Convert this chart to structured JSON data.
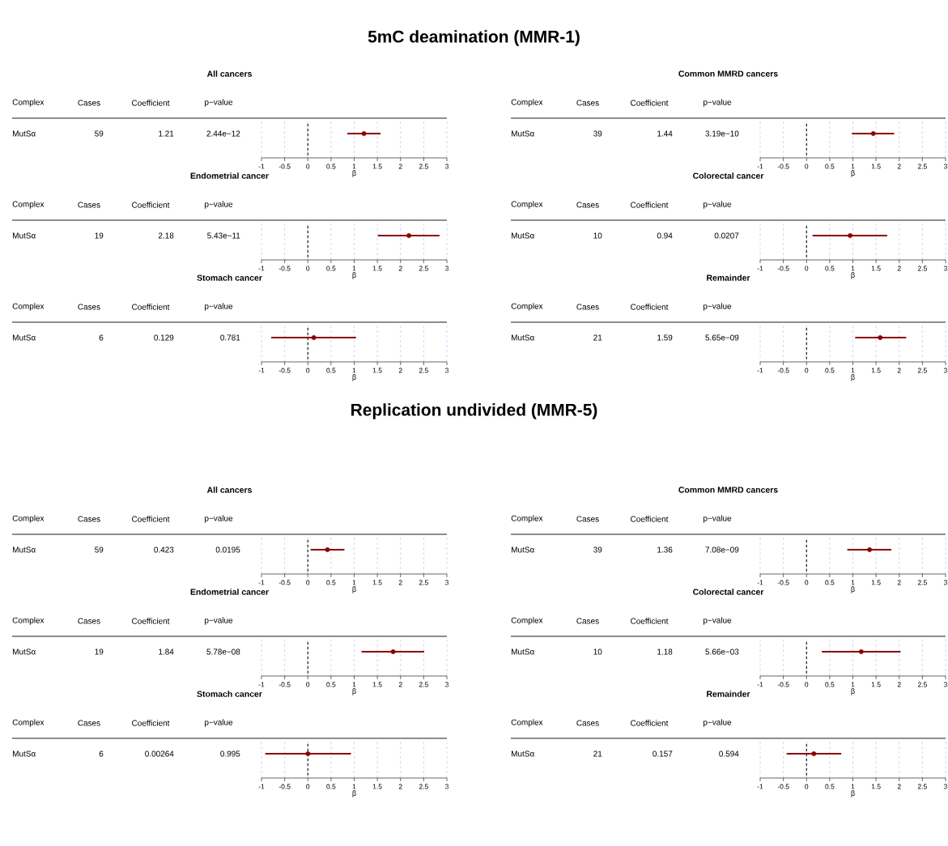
{
  "chart_data": [
    {
      "type": "scatter",
      "orientation": "horizontal",
      "subtitle": "5mC deamination (MMR-1)",
      "title": "All cancers",
      "xlabel": "β",
      "categories": [
        null
      ],
      "values": [
        1.21
      ],
      "errors": [
        [
          0.85,
          1.57
        ]
      ],
      "color": "#8b0000",
      "marker": "circle",
      "grid": "x",
      "xlim": [
        -1,
        3
      ],
      "xticks": [
        -1,
        -0.5,
        0,
        0.5,
        1,
        1.5,
        2,
        2.5,
        3
      ],
      "ref_lines": [
        {
          "axis": "x",
          "value": 0,
          "color": "#000000",
          "line_style": "dashed"
        }
      ],
      "annotations": [
        "Complex",
        "Cases",
        "Coefficient",
        "p−value",
        "MutSα",
        "59",
        "1.21",
        "2.44e−12"
      ]
    },
    {
      "type": "scatter",
      "orientation": "horizontal",
      "title": "Common MMRD cancers",
      "xlabel": "β",
      "categories": [
        null
      ],
      "values": [
        1.44
      ],
      "errors": [
        [
          0.98,
          1.89
        ]
      ],
      "color": "#8b0000",
      "marker": "circle",
      "grid": "x",
      "xlim": [
        -1,
        3
      ],
      "xticks": [
        -1,
        -0.5,
        0,
        0.5,
        1,
        1.5,
        2,
        2.5,
        3
      ],
      "ref_lines": [
        {
          "axis": "x",
          "value": 0,
          "color": "#000000",
          "line_style": "dashed"
        }
      ],
      "annotations": [
        "Complex",
        "Cases",
        "Coefficient",
        "p−value",
        "MutSα",
        "39",
        "1.44",
        "3.19e−10"
      ]
    },
    {
      "type": "scatter",
      "orientation": "horizontal",
      "title": "Endometrial cancer",
      "xlabel": "β",
      "categories": [
        null
      ],
      "values": [
        2.18
      ],
      "errors": [
        [
          1.51,
          2.84
        ]
      ],
      "color": "#8b0000",
      "marker": "circle",
      "grid": "x",
      "xlim": [
        -1,
        3
      ],
      "xticks": [
        -1,
        -0.5,
        0,
        0.5,
        1,
        1.5,
        2,
        2.5,
        3
      ],
      "ref_lines": [
        {
          "axis": "x",
          "value": 0,
          "color": "#000000",
          "line_style": "dashed"
        }
      ],
      "annotations": [
        "Complex",
        "Cases",
        "Coefficient",
        "p−value",
        "MutSα",
        "19",
        "2.18",
        "5.43e−11"
      ]
    },
    {
      "type": "scatter",
      "orientation": "horizontal",
      "title": "Colorectal cancer",
      "xlabel": "β",
      "categories": [
        null
      ],
      "values": [
        0.94
      ],
      "errors": [
        [
          0.13,
          1.74
        ]
      ],
      "color": "#8b0000",
      "marker": "circle",
      "grid": "x",
      "xlim": [
        -1,
        3
      ],
      "xticks": [
        -1,
        -0.5,
        0,
        0.5,
        1,
        1.5,
        2,
        2.5,
        3
      ],
      "ref_lines": [
        {
          "axis": "x",
          "value": 0,
          "color": "#000000",
          "line_style": "dashed"
        }
      ],
      "annotations": [
        "Complex",
        "Cases",
        "Coefficient",
        "p−value",
        "MutSα",
        "10",
        "0.94",
        "0.0207"
      ]
    },
    {
      "type": "scatter",
      "orientation": "horizontal",
      "title": "Stomach cancer",
      "xlabel": "β",
      "categories": [
        null
      ],
      "values": [
        0.129
      ],
      "errors": [
        [
          -0.79,
          1.04
        ]
      ],
      "color": "#8b0000",
      "marker": "circle",
      "grid": "x",
      "xlim": [
        -1,
        3
      ],
      "xticks": [
        -1,
        -0.5,
        0,
        0.5,
        1,
        1.5,
        2,
        2.5,
        3
      ],
      "ref_lines": [
        {
          "axis": "x",
          "value": 0,
          "color": "#000000",
          "line_style": "dashed"
        }
      ],
      "annotations": [
        "Complex",
        "Cases",
        "Coefficient",
        "p−value",
        "MutSα",
        "6",
        "0.129",
        "0.781"
      ]
    },
    {
      "type": "scatter",
      "orientation": "horizontal",
      "title": "Remainder",
      "xlabel": "β",
      "categories": [
        null
      ],
      "values": [
        1.59
      ],
      "errors": [
        [
          1.05,
          2.15
        ]
      ],
      "color": "#8b0000",
      "marker": "circle",
      "grid": "x",
      "xlim": [
        -1,
        3
      ],
      "xticks": [
        -1,
        -0.5,
        0,
        0.5,
        1,
        1.5,
        2,
        2.5,
        3
      ],
      "ref_lines": [
        {
          "axis": "x",
          "value": 0,
          "color": "#000000",
          "line_style": "dashed"
        }
      ],
      "annotations": [
        "Complex",
        "Cases",
        "Coefficient",
        "p−value",
        "MutSα",
        "21",
        "1.59",
        "5.65e−09"
      ]
    },
    {
      "type": "scatter",
      "orientation": "horizontal",
      "subtitle": "Replication undivided (MMR-5)",
      "title": "All cancers",
      "xlabel": "β",
      "categories": [
        null
      ],
      "values": [
        0.423
      ],
      "errors": [
        [
          0.06,
          0.79
        ]
      ],
      "color": "#8b0000",
      "marker": "circle",
      "grid": "x",
      "xlim": [
        -1,
        3
      ],
      "xticks": [
        -1,
        -0.5,
        0,
        0.5,
        1,
        1.5,
        2,
        2.5,
        3
      ],
      "ref_lines": [
        {
          "axis": "x",
          "value": 0,
          "color": "#000000",
          "line_style": "dashed"
        }
      ],
      "annotations": [
        "Complex",
        "Cases",
        "Coefficient",
        "p−value",
        "MutSα",
        "59",
        "0.423",
        "0.0195"
      ]
    },
    {
      "type": "scatter",
      "orientation": "horizontal",
      "title": "Common MMRD cancers",
      "xlabel": "β",
      "categories": [
        null
      ],
      "values": [
        1.36
      ],
      "errors": [
        [
          0.88,
          1.83
        ]
      ],
      "color": "#8b0000",
      "marker": "circle",
      "grid": "x",
      "xlim": [
        -1,
        3
      ],
      "xticks": [
        -1,
        -0.5,
        0,
        0.5,
        1,
        1.5,
        2,
        2.5,
        3
      ],
      "ref_lines": [
        {
          "axis": "x",
          "value": 0,
          "color": "#000000",
          "line_style": "dashed"
        }
      ],
      "annotations": [
        "Complex",
        "Cases",
        "Coefficient",
        "p−value",
        "MutSα",
        "39",
        "1.36",
        "7.08e−09"
      ]
    },
    {
      "type": "scatter",
      "orientation": "horizontal",
      "title": "Endometrial cancer",
      "xlabel": "β",
      "categories": [
        null
      ],
      "values": [
        1.84
      ],
      "errors": [
        [
          1.16,
          2.51
        ]
      ],
      "color": "#8b0000",
      "marker": "circle",
      "grid": "x",
      "xlim": [
        -1,
        3
      ],
      "xticks": [
        -1,
        -0.5,
        0,
        0.5,
        1,
        1.5,
        2,
        2.5,
        3
      ],
      "ref_lines": [
        {
          "axis": "x",
          "value": 0,
          "color": "#000000",
          "line_style": "dashed"
        }
      ],
      "annotations": [
        "Complex",
        "Cases",
        "Coefficient",
        "p−value",
        "MutSα",
        "19",
        "1.84",
        "5.78e−08"
      ]
    },
    {
      "type": "scatter",
      "orientation": "horizontal",
      "title": "Colorectal cancer",
      "xlabel": "β",
      "categories": [
        null
      ],
      "values": [
        1.18
      ],
      "errors": [
        [
          0.33,
          2.03
        ]
      ],
      "color": "#8b0000",
      "marker": "circle",
      "grid": "x",
      "xlim": [
        -1,
        3
      ],
      "xticks": [
        -1,
        -0.5,
        0,
        0.5,
        1,
        1.5,
        2,
        2.5,
        3
      ],
      "ref_lines": [
        {
          "axis": "x",
          "value": 0,
          "color": "#000000",
          "line_style": "dashed"
        }
      ],
      "annotations": [
        "Complex",
        "Cases",
        "Coefficient",
        "p−value",
        "MutSα",
        "10",
        "1.18",
        "5.66e−03"
      ]
    },
    {
      "type": "scatter",
      "orientation": "horizontal",
      "title": "Stomach cancer",
      "xlabel": "β",
      "categories": [
        null
      ],
      "values": [
        0.00264
      ],
      "errors": [
        [
          -0.92,
          0.93
        ]
      ],
      "color": "#8b0000",
      "marker": "circle",
      "grid": "x",
      "xlim": [
        -1,
        3
      ],
      "xticks": [
        -1,
        -0.5,
        0,
        0.5,
        1,
        1.5,
        2,
        2.5,
        3
      ],
      "ref_lines": [
        {
          "axis": "x",
          "value": 0,
          "color": "#000000",
          "line_style": "dashed"
        }
      ],
      "annotations": [
        "Complex",
        "Cases",
        "Coefficient",
        "p−value",
        "MutSα",
        "6",
        "0.00264",
        "0.995"
      ]
    },
    {
      "type": "scatter",
      "orientation": "horizontal",
      "title": "Remainder",
      "xlabel": "β",
      "categories": [
        null
      ],
      "values": [
        0.157
      ],
      "errors": [
        [
          -0.43,
          0.75
        ]
      ],
      "color": "#8b0000",
      "marker": "circle",
      "grid": "x",
      "xlim": [
        -1,
        3
      ],
      "xticks": [
        -1,
        -0.5,
        0,
        0.5,
        1,
        1.5,
        2,
        2.5,
        3
      ],
      "ref_lines": [
        {
          "axis": "x",
          "value": 0,
          "color": "#000000",
          "line_style": "dashed"
        }
      ],
      "annotations": [
        "Complex",
        "Cases",
        "Coefficient",
        "p−value",
        "MutSα",
        "21",
        "0.157",
        "0.594"
      ]
    }
  ]
}
